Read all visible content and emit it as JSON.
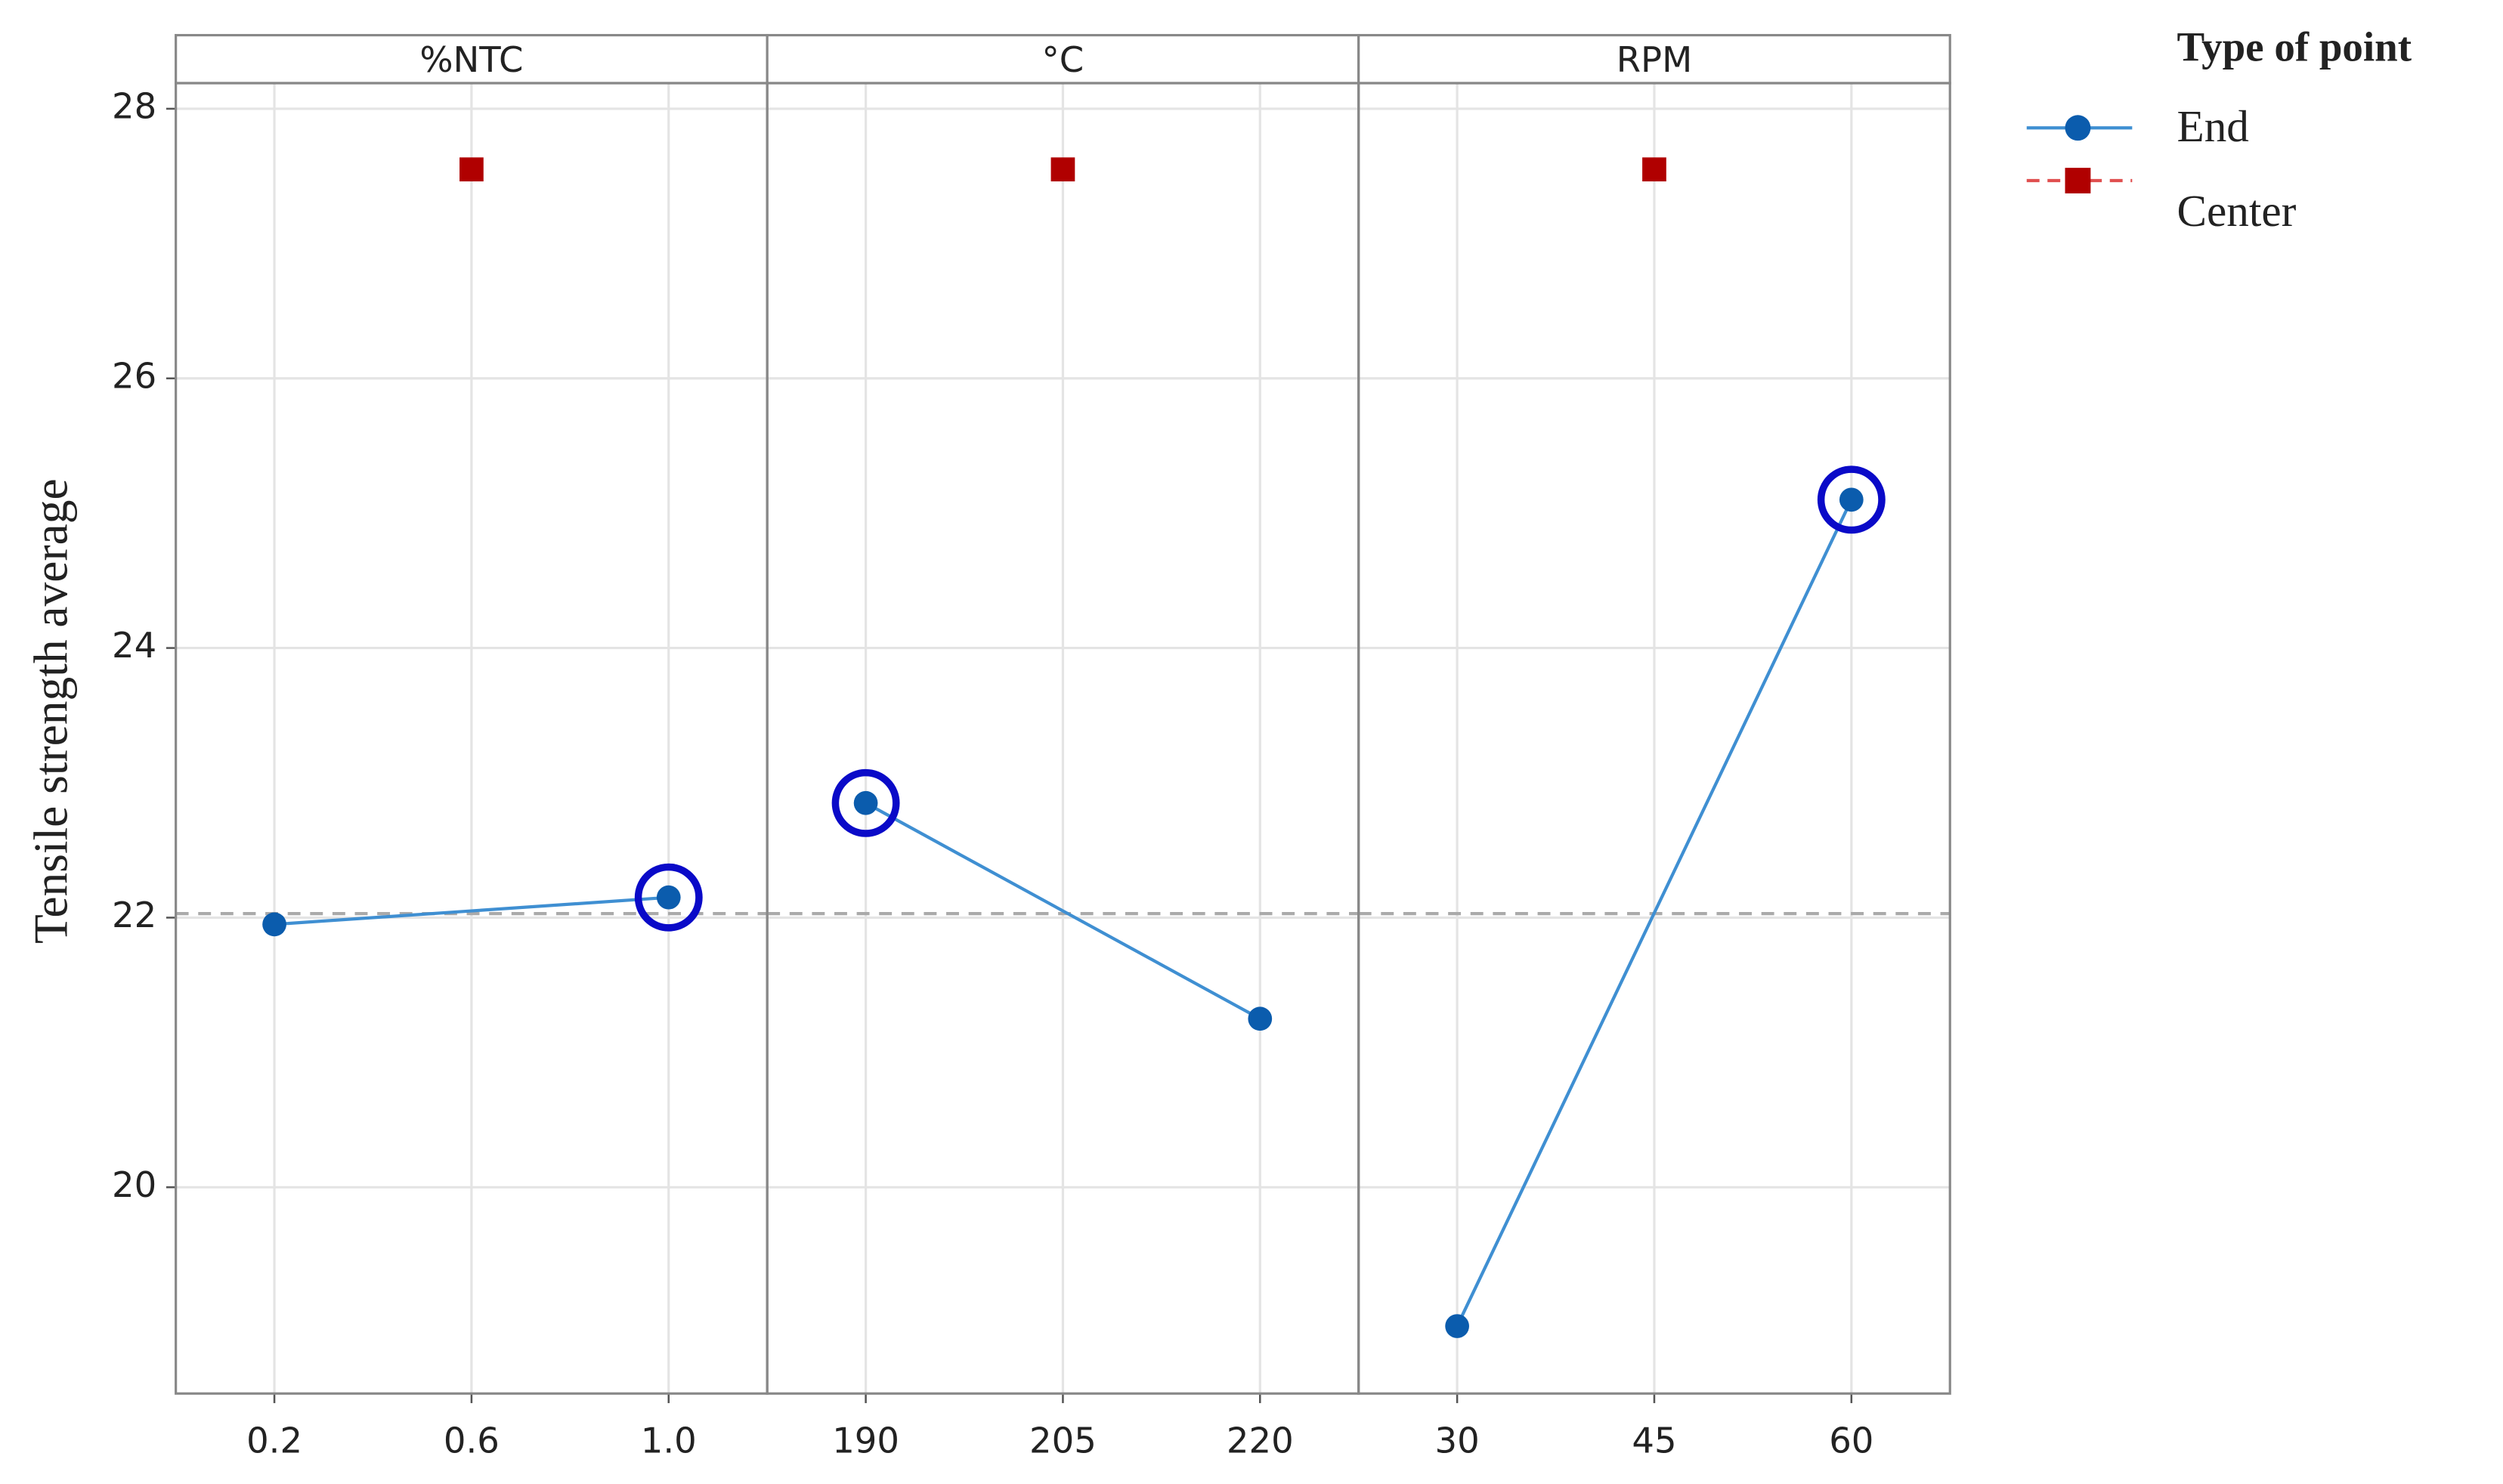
{
  "chart_data": {
    "type": "main_effects",
    "ylabel": "Tensile strength average",
    "ylim": [
      18.47,
      28.19
    ],
    "yticks": [
      20,
      22,
      24,
      26,
      28
    ],
    "grid": true,
    "reference_line": 22.03,
    "legend_title": "Type of point",
    "legend": "right",
    "highlight_color": "#0a0ac8",
    "series": [
      {
        "name": "End",
        "color": "#0b5cad",
        "line_color": "#3f8fd2"
      },
      {
        "name": "Center",
        "color": "#b00000"
      }
    ],
    "panels": [
      {
        "title": "%NTC",
        "xlim": [
          0,
          1.2
        ],
        "xticks": [
          0.2,
          0.6,
          {
            "value": 1,
            "label": "1.0"
          }
        ],
        "end": {
          "x": [
            0.2,
            1
          ],
          "values": [
            21.95,
            22.15
          ],
          "highlight": [
            false,
            true
          ]
        },
        "center": {
          "x": [
            0.6
          ],
          "values": [
            27.55
          ]
        }
      },
      {
        "title": "°C",
        "xlim": [
          182.5,
          227.5
        ],
        "xticks": [
          190,
          205,
          220
        ],
        "end": {
          "x": [
            190,
            220
          ],
          "values": [
            22.85,
            21.25
          ],
          "highlight": [
            true,
            false
          ]
        },
        "center": {
          "x": [
            205
          ],
          "values": [
            27.55
          ]
        }
      },
      {
        "title": "RPM",
        "xlim": [
          22.5,
          67.5
        ],
        "xticks": [
          30,
          45,
          60
        ],
        "end": {
          "x": [
            30,
            60
          ],
          "values": [
            18.97,
            25.1
          ],
          "highlight": [
            false,
            true
          ]
        },
        "center": {
          "x": [
            45
          ],
          "values": [
            27.55
          ]
        }
      }
    ]
  }
}
